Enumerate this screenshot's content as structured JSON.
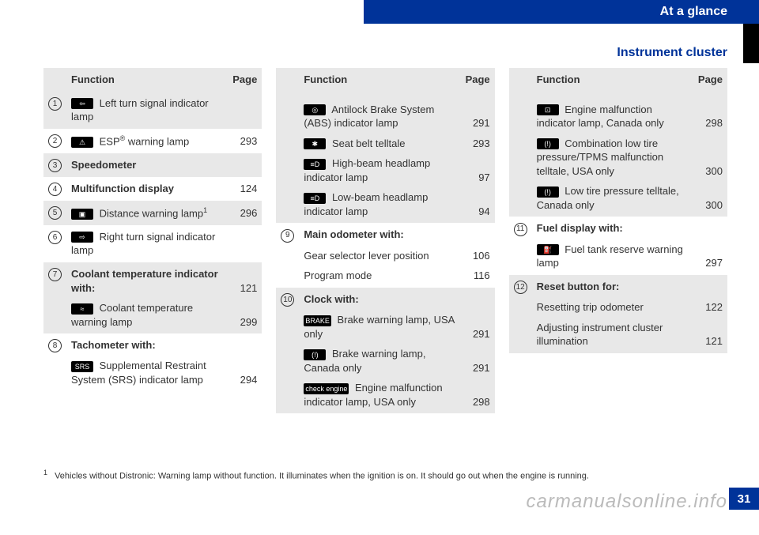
{
  "header": {
    "section": "At a glance",
    "subtitle": "Instrument cluster"
  },
  "labels": {
    "function": "Function",
    "page": "Page"
  },
  "col1": [
    {
      "n": "1",
      "icon": "⇦",
      "text": " Left turn signal indicator lamp",
      "page": ""
    },
    {
      "n": "2",
      "icon": "⚠",
      "text": " ESP",
      "sup": "®",
      "text2": " warning lamp",
      "page": "293"
    },
    {
      "n": "3",
      "bold": true,
      "text": "Speedometer",
      "page": ""
    },
    {
      "n": "4",
      "bold": true,
      "text": "Multifunction display",
      "page": "124"
    },
    {
      "n": "5",
      "icon": "▣",
      "text": " Distance warning lamp",
      "sup": "1",
      "page": "296"
    },
    {
      "n": "6",
      "icon": "⇨",
      "text": " Right turn signal indicator lamp",
      "page": ""
    },
    {
      "n": "7",
      "bold": true,
      "text": "Coolant temperature indicator with:",
      "page": "121",
      "sub": [
        {
          "icon": "≈",
          "text": " Coolant temperature warning lamp",
          "page": "299"
        }
      ]
    },
    {
      "n": "8",
      "bold": true,
      "text": "Tachometer with:",
      "page": "",
      "sub": [
        {
          "icon": "SRS",
          "text": " Supplemental Restraint System (SRS) indicator lamp",
          "page": "294"
        }
      ]
    }
  ],
  "col2": [
    {
      "n": "",
      "cont": true,
      "sub": [
        {
          "icon": "◎",
          "text": " Antilock Brake System (ABS) indicator lamp",
          "page": "291"
        },
        {
          "icon": "✱",
          "text": " Seat belt telltale",
          "page": "293"
        },
        {
          "icon": "≡D",
          "text": " High-beam headlamp indicator lamp",
          "page": "97"
        },
        {
          "icon": "≡D",
          "text": " Low-beam headlamp indicator lamp",
          "page": "94"
        }
      ]
    },
    {
      "n": "9",
      "bold": true,
      "text": "Main odometer with:",
      "page": "",
      "sub": [
        {
          "text": "Gear selector lever position",
          "page": "106"
        },
        {
          "text": "Program mode",
          "page": "116"
        }
      ]
    },
    {
      "n": "10",
      "bold": true,
      "text": "Clock with:",
      "page": "",
      "sub": [
        {
          "icon": "BRAKE",
          "text": " Brake warning lamp, USA only",
          "page": "291"
        },
        {
          "icon": "(!)",
          "text": " Brake warning lamp, Canada only",
          "page": "291"
        },
        {
          "icon": "check engine",
          "text": " Engine malfunction indicator lamp, USA only",
          "page": "298"
        }
      ]
    }
  ],
  "col3": [
    {
      "n": "",
      "cont": true,
      "sub": [
        {
          "icon": "⊡",
          "text": " Engine malfunction indicator lamp, Canada only",
          "page": "298"
        },
        {
          "icon": "(!)",
          "text": " Combination low tire pressure/TPMS malfunction telltale, USA only",
          "page": "300"
        },
        {
          "icon": "(!)",
          "text": " Low tire pressure telltale, Canada only",
          "page": "300"
        }
      ]
    },
    {
      "n": "11",
      "bold": true,
      "text": "Fuel display with:",
      "page": "",
      "sub": [
        {
          "icon": "⛽",
          "text": " Fuel tank reserve warning lamp",
          "page": "297"
        }
      ]
    },
    {
      "n": "12",
      "bold": true,
      "text": "Reset button for:",
      "page": "",
      "sub": [
        {
          "text": "Resetting trip odometer",
          "page": "122"
        },
        {
          "text": "Adjusting instrument cluster illumination",
          "page": "121"
        }
      ]
    }
  ],
  "footnote": {
    "num": "1",
    "text": "Vehicles without Distronic: Warning lamp without function. It illuminates when the ignition is on. It should go out when the engine is running."
  },
  "watermark": "carmanualsonline.info",
  "pagenum": "31"
}
